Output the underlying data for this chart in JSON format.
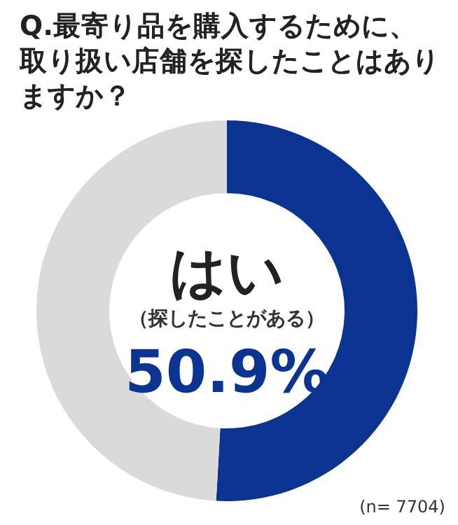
{
  "chart_data": {
    "type": "donut",
    "title": "Q.最寄り品を購入するために、取り扱い店舗を探したことはありますか？",
    "categories": [
      "はい",
      null
    ],
    "values": [
      50.9,
      49.1
    ],
    "colors": [
      "#0b3391",
      "#dadada"
    ],
    "value_labels": [
      "50.9%",
      null
    ],
    "annotations": [
      "（探したことがある）",
      "(n= 7704)"
    ]
  }
}
